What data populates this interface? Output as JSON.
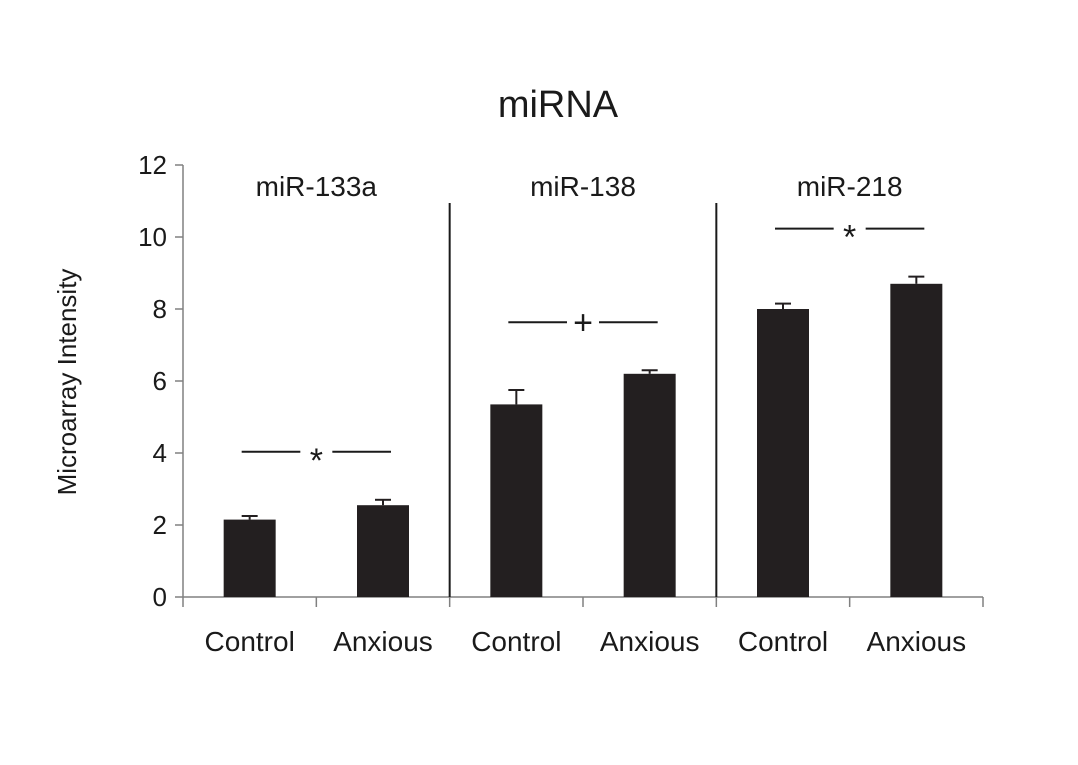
{
  "chart_data": {
    "type": "bar",
    "title": "miRNA",
    "xlabel": "",
    "ylabel": "Microarray Intensity",
    "ylim": [
      0,
      12
    ],
    "yticks": [
      0,
      2,
      4,
      6,
      8,
      10,
      12
    ],
    "grid": false,
    "legend": "none",
    "bar_color": "#231f20",
    "groups": [
      {
        "label": "miR-133a",
        "categories": [
          "Control",
          "Anxious"
        ],
        "values": [
          2.15,
          2.55
        ],
        "errors": [
          0.1,
          0.15
        ],
        "significance": "*"
      },
      {
        "label": "miR-138",
        "categories": [
          "Control",
          "Anxious"
        ],
        "values": [
          5.35,
          6.2
        ],
        "errors": [
          0.4,
          0.1
        ],
        "significance": "+"
      },
      {
        "label": "miR-218",
        "categories": [
          "Control",
          "Anxious"
        ],
        "values": [
          8.0,
          8.7
        ],
        "errors": [
          0.15,
          0.2
        ],
        "significance": "*"
      }
    ]
  }
}
